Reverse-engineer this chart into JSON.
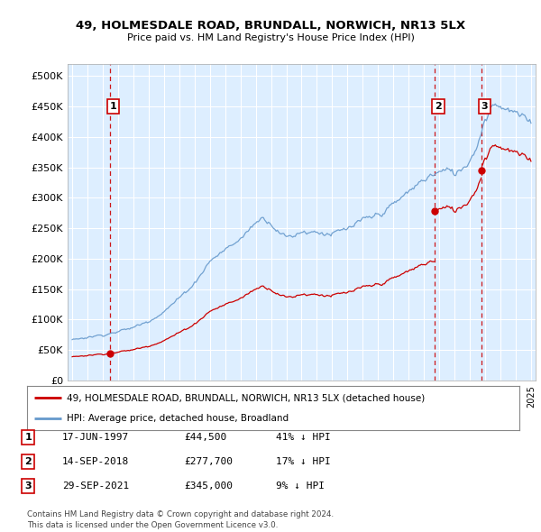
{
  "title1": "49, HOLMESDALE ROAD, BRUNDALL, NORWICH, NR13 5LX",
  "title2": "Price paid vs. HM Land Registry's House Price Index (HPI)",
  "ylabel_ticks": [
    "£0",
    "£50K",
    "£100K",
    "£150K",
    "£200K",
    "£250K",
    "£300K",
    "£350K",
    "£400K",
    "£450K",
    "£500K"
  ],
  "ytick_vals": [
    0,
    50000,
    100000,
    150000,
    200000,
    250000,
    300000,
    350000,
    400000,
    450000,
    500000
  ],
  "ylim": [
    0,
    520000
  ],
  "xlim_start": 1994.7,
  "xlim_end": 2025.3,
  "bg_color": "#ddeeff",
  "grid_color": "#ffffff",
  "red_line_color": "#cc0000",
  "blue_line_color": "#6699cc",
  "sale_points": [
    {
      "year": 1997.46,
      "price": 44500,
      "label": "1"
    },
    {
      "year": 2018.71,
      "price": 277700,
      "label": "2"
    },
    {
      "year": 2021.75,
      "price": 345000,
      "label": "3"
    }
  ],
  "vline_color": "#cc0000",
  "legend_items": [
    "49, HOLMESDALE ROAD, BRUNDALL, NORWICH, NR13 5LX (detached house)",
    "HPI: Average price, detached house, Broadland"
  ],
  "table_rows": [
    {
      "num": "1",
      "date": "17-JUN-1997",
      "price": "£44,500",
      "pct": "41% ↓ HPI"
    },
    {
      "num": "2",
      "date": "14-SEP-2018",
      "price": "£277,700",
      "pct": "17% ↓ HPI"
    },
    {
      "num": "3",
      "date": "29-SEP-2021",
      "price": "£345,000",
      "pct": "9% ↓ HPI"
    }
  ],
  "footer": "Contains HM Land Registry data © Crown copyright and database right 2024.\nThis data is licensed under the Open Government Licence v3.0."
}
